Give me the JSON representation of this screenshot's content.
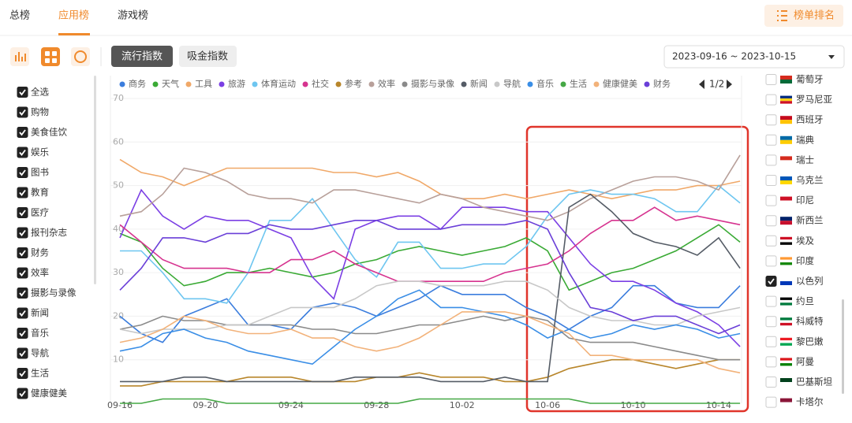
{
  "tabs": [
    "总榜",
    "应用榜",
    "游戏榜"
  ],
  "rank_button": "榜单排名",
  "index_buttons": [
    "流行指数",
    "吸金指数"
  ],
  "date_range": "2023-09-16 ~ 2023-10-15",
  "legend_page": "1/2",
  "category_filter": [
    {
      "label": "全选",
      "checked": true
    },
    {
      "label": "购物",
      "checked": true
    },
    {
      "label": "美食佳饮",
      "checked": true
    },
    {
      "label": "娱乐",
      "checked": true
    },
    {
      "label": "图书",
      "checked": true
    },
    {
      "label": "教育",
      "checked": true
    },
    {
      "label": "医疗",
      "checked": true
    },
    {
      "label": "报刊杂志",
      "checked": true
    },
    {
      "label": "财务",
      "checked": true
    },
    {
      "label": "效率",
      "checked": true
    },
    {
      "label": "摄影与录像",
      "checked": true
    },
    {
      "label": "新闻",
      "checked": true
    },
    {
      "label": "音乐",
      "checked": true
    },
    {
      "label": "导航",
      "checked": true
    },
    {
      "label": "生活",
      "checked": true
    },
    {
      "label": "健康健美",
      "checked": true
    }
  ],
  "countries": [
    {
      "label": "葡萄牙",
      "checked": false
    },
    {
      "label": "罗马尼亚",
      "checked": false
    },
    {
      "label": "西班牙",
      "checked": false
    },
    {
      "label": "瑞典",
      "checked": false
    },
    {
      "label": "瑞士",
      "checked": false
    },
    {
      "label": "乌克兰",
      "checked": false
    },
    {
      "label": "印尼",
      "checked": false
    },
    {
      "label": "新西兰",
      "checked": false
    },
    {
      "label": "埃及",
      "checked": false
    },
    {
      "label": "印度",
      "checked": false
    },
    {
      "label": "以色列",
      "checked": true
    },
    {
      "label": "约旦",
      "checked": false
    },
    {
      "label": "科威特",
      "checked": false
    },
    {
      "label": "黎巴嫩",
      "checked": false
    },
    {
      "label": "阿曼",
      "checked": false
    },
    {
      "label": "巴基斯坦",
      "checked": false
    },
    {
      "label": "卡塔尔",
      "checked": false
    }
  ],
  "chart_data": {
    "type": "line",
    "categories": [
      "09-16",
      null,
      null,
      null,
      "09-20",
      null,
      null,
      null,
      "09-24",
      null,
      null,
      null,
      "09-28",
      null,
      null,
      null,
      "10-02",
      null,
      null,
      null,
      "10-06",
      null,
      null,
      null,
      "10-10",
      null,
      null,
      null,
      "10-14",
      null
    ],
    "ylim": [
      0,
      70
    ],
    "yticks": [
      10,
      20,
      30,
      40,
      50,
      60,
      70
    ],
    "grid": true,
    "series": [
      {
        "name": "商务",
        "color": "#3b7ddd",
        "values": [
          20,
          16,
          14,
          20,
          22,
          24,
          18,
          18,
          17,
          22,
          23,
          22,
          20,
          22,
          24,
          27,
          25,
          25,
          25,
          22,
          20,
          17,
          20,
          22,
          27,
          27,
          23,
          22,
          22,
          27
        ]
      },
      {
        "name": "天气",
        "color": "#3aaa35",
        "values": [
          39,
          37,
          31,
          27,
          28,
          30,
          30,
          31,
          30,
          29,
          30,
          32,
          33,
          35,
          36,
          35,
          34,
          35,
          36,
          38,
          35,
          26,
          28,
          30,
          31,
          33,
          35,
          38,
          41,
          37
        ]
      },
      {
        "name": "工具",
        "color": "#f0a868",
        "values": [
          56,
          53,
          52,
          50,
          52,
          54,
          54,
          54,
          54,
          54,
          53,
          53,
          52,
          53,
          51,
          48,
          47,
          47,
          48,
          47,
          48,
          49,
          48,
          47,
          48,
          49,
          49,
          50,
          50,
          51
        ]
      },
      {
        "name": "旅游",
        "color": "#7b3fe4",
        "values": [
          38,
          49,
          43,
          40,
          43,
          42,
          42,
          40,
          38,
          29,
          24,
          40,
          42,
          43,
          43,
          40,
          45,
          45,
          45,
          44,
          44,
          38,
          32,
          28,
          28,
          26,
          23,
          21,
          18,
          13
        ]
      },
      {
        "name": "体育运动",
        "color": "#6ec6f0",
        "values": [
          35,
          35,
          30,
          24,
          24,
          23,
          30,
          42,
          42,
          47,
          40,
          33,
          29,
          37,
          37,
          31,
          31,
          32,
          32,
          36,
          43,
          48,
          49,
          48,
          48,
          47,
          44,
          44,
          50,
          46
        ]
      },
      {
        "name": "社交",
        "color": "#d6338f",
        "values": [
          41,
          37,
          33,
          31,
          31,
          31,
          30,
          30,
          33,
          33,
          35,
          32,
          30,
          28,
          28,
          28,
          28,
          28,
          30,
          31,
          32,
          35,
          39,
          42,
          42,
          45,
          42,
          43,
          42,
          41
        ]
      },
      {
        "name": "参考",
        "color": "#b8862b",
        "values": [
          4,
          4,
          5,
          5,
          5,
          5,
          6,
          6,
          6,
          5,
          5,
          5,
          6,
          6,
          7,
          6,
          6,
          6,
          5,
          5,
          6,
          8,
          9,
          10,
          10,
          9,
          8,
          9,
          10,
          10
        ]
      },
      {
        "name": "效率",
        "color": "#b8a09a",
        "values": [
          43,
          44,
          48,
          54,
          53,
          51,
          48,
          47,
          47,
          46,
          49,
          49,
          48,
          47,
          46,
          48,
          47,
          45,
          44,
          43,
          42,
          44,
          47,
          49,
          51,
          52,
          52,
          51,
          49,
          57
        ]
      },
      {
        "name": "摄影与录像",
        "color": "#8a8a8a",
        "values": [
          17,
          18,
          20,
          19,
          19,
          18,
          18,
          18,
          18,
          17,
          17,
          16,
          16,
          17,
          18,
          18,
          19,
          20,
          19,
          20,
          19,
          15,
          14,
          14,
          14,
          13,
          12,
          11,
          10,
          10
        ]
      },
      {
        "name": "新闻",
        "color": "#555c66",
        "values": [
          5,
          5,
          5,
          6,
          6,
          5,
          5,
          5,
          5,
          5,
          5,
          6,
          6,
          6,
          6,
          5,
          5,
          5,
          6,
          5,
          5,
          45,
          48,
          44,
          39,
          37,
          36,
          34,
          38,
          31
        ]
      },
      {
        "name": "导航",
        "color": "#c8c8c8",
        "values": [
          17,
          16,
          17,
          17,
          17,
          18,
          18,
          20,
          22,
          22,
          22,
          24,
          27,
          28,
          28,
          27,
          27,
          27,
          28,
          28,
          26,
          22,
          20,
          19,
          19,
          18,
          18,
          20,
          21,
          22
        ]
      },
      {
        "name": "音乐",
        "color": "#3a8ee6",
        "values": [
          12,
          13,
          16,
          17,
          15,
          14,
          12,
          11,
          10,
          9,
          13,
          17,
          20,
          24,
          26,
          22,
          22,
          21,
          20,
          18,
          15,
          17,
          15,
          16,
          18,
          17,
          18,
          17,
          15,
          16
        ]
      },
      {
        "name": "生活",
        "color": "#45a845",
        "values": [
          0,
          0,
          1,
          1,
          1,
          0,
          0,
          0,
          0,
          0,
          0,
          0,
          0,
          0,
          1,
          1,
          1,
          1,
          1,
          1,
          1,
          1,
          0,
          0,
          0,
          0,
          0,
          0,
          0,
          0
        ]
      },
      {
        "name": "健康健美",
        "color": "#f2b27a",
        "values": [
          14,
          15,
          17,
          20,
          19,
          17,
          16,
          16,
          17,
          15,
          15,
          13,
          12,
          13,
          15,
          18,
          21,
          21,
          21,
          20,
          18,
          16,
          11,
          11,
          10,
          10,
          10,
          10,
          8,
          7
        ]
      },
      {
        "name": "财务",
        "color": "#6a3fd8",
        "values": [
          26,
          31,
          38,
          38,
          37,
          39,
          39,
          41,
          40,
          40,
          41,
          42,
          42,
          40,
          40,
          40,
          41,
          41,
          41,
          42,
          40,
          30,
          22,
          21,
          19,
          20,
          20,
          18,
          16,
          18
        ]
      }
    ]
  }
}
